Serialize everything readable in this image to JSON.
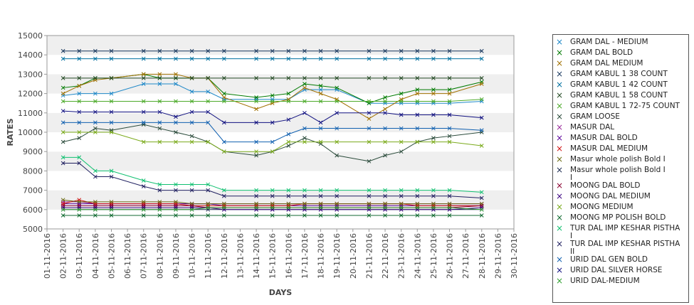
{
  "chart_data": {
    "type": "line",
    "title": "",
    "xlabel": "DAYS",
    "ylabel": "RATES",
    "ylim": [
      5000,
      15000
    ],
    "yticks": [
      "5000",
      "6000",
      "7000",
      "8000",
      "9000",
      "10000",
      "11000",
      "12000",
      "13000",
      "14000",
      "15000"
    ],
    "xticks": [
      "01-11-2016",
      "02-11-2016",
      "03-11-2016",
      "04-11-2016",
      "05-11-2016",
      "06-11-2016",
      "07-11-2016",
      "08-11-2016",
      "09-11-2016",
      "10-11-2016",
      "11-11-2016",
      "12-11-2016",
      "13-11-2016",
      "14-11-2016",
      "15-11-2016",
      "16-11-2016",
      "17-11-2016",
      "18-11-2016",
      "19-11-2016",
      "20-11-2016",
      "21-11-2016",
      "22-11-2016",
      "23-11-2016",
      "24-11-2016",
      "25-11-2016",
      "26-11-2016",
      "27-11-2016",
      "28-11-2016",
      "29-11-2016",
      "30-11-2016"
    ],
    "x": [
      2,
      3,
      4,
      5,
      7,
      8,
      9,
      10,
      11,
      12,
      14,
      15,
      16,
      17,
      18,
      19,
      21,
      22,
      23,
      24,
      25,
      26,
      28
    ],
    "grid": "horizontal alternating bands",
    "legend_position": "right",
    "series": [
      {
        "name": "GRAM DAL - MEDIUM",
        "color": "#1e88c8",
        "values": [
          11900,
          12000,
          12000,
          12000,
          12500,
          12500,
          12500,
          12100,
          12100,
          11700,
          11700,
          11700,
          11700,
          12200,
          12200,
          12200,
          11500,
          11500,
          11500,
          11500,
          11500,
          11500,
          11600
        ]
      },
      {
        "name": "GRAM DAL BOLD",
        "color": "#007a00",
        "values": [
          12300,
          12400,
          12800,
          12800,
          13000,
          12800,
          12800,
          12800,
          12800,
          12000,
          11800,
          11900,
          12000,
          12500,
          12400,
          12300,
          11500,
          11800,
          12000,
          12200,
          12200,
          12200,
          12600
        ]
      },
      {
        "name": "GRAM DAL MEDIUM",
        "color": "#a07000",
        "values": [
          12000,
          12400,
          12700,
          12800,
          13000,
          13000,
          13000,
          12800,
          12800,
          11800,
          11200,
          11500,
          11700,
          12300,
          12000,
          11700,
          10700,
          11200,
          11700,
          12000,
          12000,
          12000,
          12500
        ]
      },
      {
        "name": "GRAM KABUL 1 38 COUNT",
        "color": "#17375e",
        "values": [
          14200,
          14200,
          14200,
          14200,
          14200,
          14200,
          14200,
          14200,
          14200,
          14200,
          14200,
          14200,
          14200,
          14200,
          14200,
          14200,
          14200,
          14200,
          14200,
          14200,
          14200,
          14200,
          14200
        ]
      },
      {
        "name": "GRAM KABUL 1 42 COUNT",
        "color": "#0070a0",
        "values": [
          13800,
          13800,
          13800,
          13800,
          13800,
          13800,
          13800,
          13800,
          13800,
          13800,
          13800,
          13800,
          13800,
          13800,
          13800,
          13800,
          13800,
          13800,
          13800,
          13800,
          13800,
          13800,
          13800
        ]
      },
      {
        "name": "GRAM KABUL 1 58 COUNT",
        "color": "#244a24",
        "values": [
          12800,
          12800,
          12800,
          12800,
          12800,
          12800,
          12800,
          12800,
          12800,
          12800,
          12800,
          12800,
          12800,
          12800,
          12800,
          12800,
          12800,
          12800,
          12800,
          12800,
          12800,
          12800,
          12800
        ]
      },
      {
        "name": "GRAM KABUL 1 72-75 COUNT",
        "color": "#4caa2a",
        "values": [
          11600,
          11600,
          11600,
          11600,
          11600,
          11600,
          11600,
          11600,
          11600,
          11600,
          11600,
          11600,
          11600,
          11600,
          11600,
          11600,
          11600,
          11600,
          11600,
          11600,
          11600,
          11600,
          11700
        ]
      },
      {
        "name": "GRAM LOOSE",
        "color": "#2b4b3b",
        "values": [
          9500,
          9700,
          10200,
          10100,
          10400,
          10200,
          10000,
          9800,
          9500,
          9000,
          8800,
          9000,
          9300,
          9700,
          9400,
          8800,
          8500,
          8800,
          9000,
          9500,
          9700,
          9800,
          10000
        ]
      },
      {
        "name": "MASUR DAL",
        "color": "#9a2a9a",
        "values": [
          6400,
          6400,
          6300,
          6300,
          6300,
          6300,
          6300,
          6300,
          6300,
          6300,
          6300,
          6300,
          6300,
          6300,
          6300,
          6300,
          6300,
          6300,
          6300,
          6300,
          6300,
          6300,
          6300
        ]
      },
      {
        "name": "MASUR DAL BOLD",
        "color": "#5a009a",
        "values": [
          6300,
          6300,
          6300,
          6300,
          6300,
          6300,
          6300,
          6300,
          6300,
          6200,
          6200,
          6200,
          6200,
          6200,
          6200,
          6200,
          6200,
          6200,
          6200,
          6200,
          6200,
          6200,
          6200
        ]
      },
      {
        "name": "MASUR DAL MEDIUM",
        "color": "#d01010",
        "values": [
          6300,
          6500,
          6300,
          6300,
          6300,
          6300,
          6300,
          6200,
          6200,
          6200,
          6200,
          6200,
          6200,
          6300,
          6300,
          6300,
          6300,
          6300,
          6300,
          6200,
          6200,
          6200,
          6200
        ]
      },
      {
        "name": "Masur whole polish Bold I",
        "color": "#6a6a10",
        "values": [
          6500,
          6400,
          6400,
          6400,
          6400,
          6400,
          6400,
          6300,
          6300,
          6300,
          6300,
          6300,
          6300,
          6300,
          6300,
          6300,
          6300,
          6300,
          6300,
          6300,
          6300,
          6300,
          6300
        ]
      },
      {
        "name": "Masur whole polish Bold I\nI",
        "color": "#1a2a50",
        "values": [
          6000,
          6000,
          6000,
          6000,
          6000,
          6000,
          6000,
          6000,
          6000,
          6000,
          6000,
          6000,
          6000,
          6000,
          6000,
          6000,
          6000,
          6000,
          6000,
          6000,
          6000,
          6000,
          6000
        ]
      },
      {
        "name": "MOONG DAL BOLD",
        "color": "#8a0030",
        "values": [
          6200,
          6200,
          6200,
          6200,
          6200,
          6200,
          6200,
          6200,
          6100,
          6100,
          6100,
          6100,
          6100,
          6100,
          6100,
          6100,
          6100,
          6100,
          6100,
          6100,
          6100,
          6100,
          6200
        ]
      },
      {
        "name": "MOONG DAL MEDIUM",
        "color": "#3a0080",
        "values": [
          6100,
          6100,
          6100,
          6100,
          6100,
          6100,
          6100,
          6100,
          6100,
          6000,
          6000,
          6000,
          6000,
          6000,
          6000,
          6000,
          6000,
          6000,
          6000,
          6000,
          6000,
          6000,
          6100
        ]
      },
      {
        "name": "MOONG MEDIUM",
        "color": "#7aaa1a",
        "values": [
          10000,
          10000,
          10000,
          10000,
          9500,
          9500,
          9500,
          9500,
          9500,
          9000,
          9000,
          9000,
          9500,
          9500,
          9500,
          9500,
          9500,
          9500,
          9500,
          9500,
          9500,
          9500,
          9300
        ]
      },
      {
        "name": "MOONG MP POLISH BOLD",
        "color": "#106a30",
        "values": [
          5700,
          5700,
          5700,
          5700,
          5700,
          5700,
          5700,
          5700,
          5700,
          5700,
          5700,
          5700,
          5700,
          5700,
          5700,
          5700,
          5700,
          5700,
          5700,
          5700,
          5700,
          5700,
          5700
        ]
      },
      {
        "name": "TUR DAL IMP KESHAR PISTHA\n I",
        "color": "#10c070",
        "values": [
          8700,
          8700,
          8000,
          8000,
          7500,
          7300,
          7300,
          7300,
          7300,
          7000,
          7000,
          7000,
          7000,
          7000,
          7000,
          7000,
          7000,
          7000,
          7000,
          7000,
          7000,
          7000,
          6900
        ]
      },
      {
        "name": "TUR DAL IMP KESHAR PISTHA\n II",
        "color": "#202060",
        "values": [
          8400,
          8400,
          7700,
          7700,
          7200,
          7000,
          7000,
          7000,
          7000,
          6700,
          6700,
          6700,
          6700,
          6700,
          6700,
          6700,
          6700,
          6700,
          6700,
          6700,
          6700,
          6700,
          6600
        ]
      },
      {
        "name": "URID DAL GEN BOLD",
        "color": "#1060b0",
        "values": [
          10500,
          10500,
          10500,
          10500,
          10500,
          10500,
          10500,
          10500,
          10500,
          9500,
          9500,
          9500,
          9900,
          10200,
          10200,
          10200,
          10200,
          10200,
          10200,
          10200,
          10200,
          10200,
          10100
        ]
      },
      {
        "name": "URID DAL SILVER HORSE",
        "color": "#101080",
        "values": [
          11100,
          11050,
          11050,
          11050,
          11050,
          11050,
          10800,
          11050,
          11050,
          10500,
          10500,
          10500,
          10650,
          11000,
          10500,
          11000,
          11000,
          11000,
          10900,
          10900,
          10900,
          10900,
          10750
        ]
      },
      {
        "name": "URID DAL-MEDIUM",
        "color": "#30a030",
        "values": [
          6000,
          6000,
          6000,
          6000,
          6000,
          6000,
          6000,
          6000,
          6100,
          6100,
          6100,
          6100,
          6100,
          6100,
          6100,
          6100,
          6100,
          6100,
          6100,
          6100,
          6100,
          6100,
          6000
        ]
      }
    ]
  }
}
